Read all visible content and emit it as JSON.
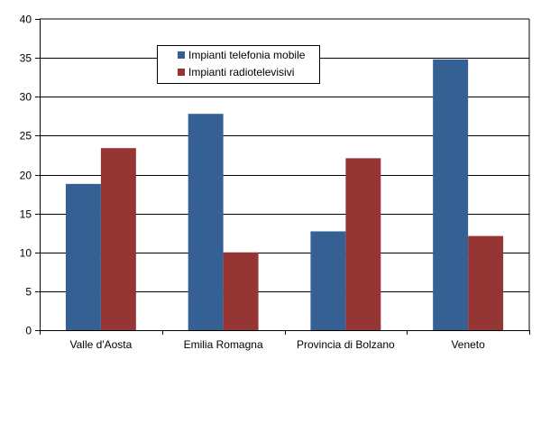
{
  "chart_data": {
    "type": "bar",
    "categories": [
      "Valle d'Aosta",
      "Emilia Romagna",
      "Provincia di Bolzano",
      "Veneto"
    ],
    "series": [
      {
        "name": "Impianti telefonia mobile",
        "color": "#356094",
        "values": [
          18.8,
          27.8,
          12.7,
          34.8
        ]
      },
      {
        "name": "Impianti radiotelevisivi",
        "color": "#963634",
        "values": [
          23.4,
          10.0,
          22.1,
          12.1
        ]
      }
    ],
    "yticks": [
      "0",
      "5",
      "10",
      "15",
      "20",
      "25",
      "30",
      "35",
      "40"
    ],
    "ylim": [
      0,
      40
    ],
    "grid": true,
    "legend": "top-center"
  }
}
